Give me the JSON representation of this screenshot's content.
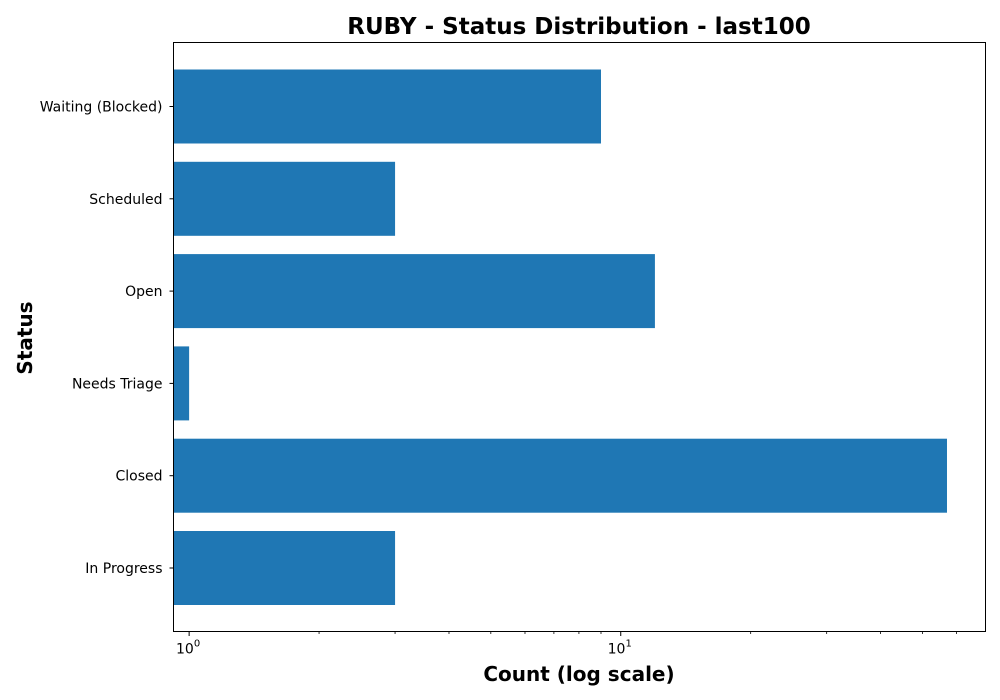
{
  "chart_data": {
    "type": "bar",
    "orientation": "horizontal",
    "title": "RUBY - Status Distribution - last100",
    "xlabel": "Count (log scale)",
    "ylabel": "Status",
    "x_scale": "log",
    "xlim": [
      0.92,
      70
    ],
    "x_major_ticks": [
      {
        "value": 1,
        "base": "10",
        "exp": "0"
      },
      {
        "value": 10,
        "base": "10",
        "exp": "1"
      }
    ],
    "categories": [
      "In Progress",
      "Closed",
      "Needs Triage",
      "Open",
      "Scheduled",
      "Waiting (Blocked)"
    ],
    "values": [
      3,
      57,
      1,
      12,
      3,
      9
    ],
    "bar_color": "#1f77b4",
    "grid": false,
    "legend": "none"
  }
}
